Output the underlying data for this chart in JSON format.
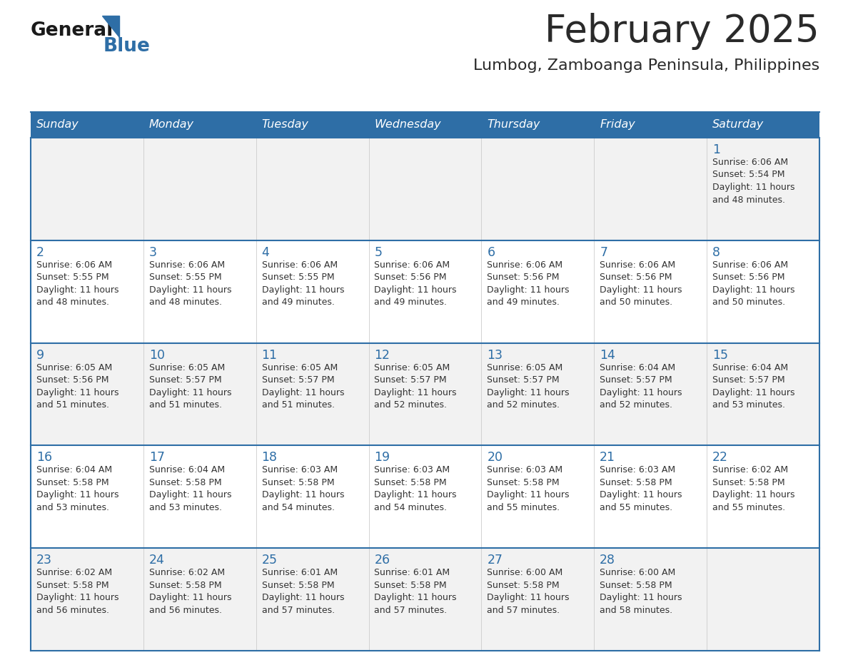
{
  "title": "February 2025",
  "subtitle": "Lumbog, Zamboanga Peninsula, Philippines",
  "header_bg": "#2E6EA6",
  "header_text": "#FFFFFF",
  "cell_bg_light": "#F2F2F2",
  "cell_bg_white": "#FFFFFF",
  "border_color": "#2E6EA6",
  "title_color": "#2a2a2a",
  "subtitle_color": "#2a2a2a",
  "day_number_color": "#2E6EA6",
  "info_text_color": "#333333",
  "days_of_week": [
    "Sunday",
    "Monday",
    "Tuesday",
    "Wednesday",
    "Thursday",
    "Friday",
    "Saturday"
  ],
  "calendar_data": [
    [
      {
        "day": 0,
        "info": ""
      },
      {
        "day": 0,
        "info": ""
      },
      {
        "day": 0,
        "info": ""
      },
      {
        "day": 0,
        "info": ""
      },
      {
        "day": 0,
        "info": ""
      },
      {
        "day": 0,
        "info": ""
      },
      {
        "day": 1,
        "info": "Sunrise: 6:06 AM\nSunset: 5:54 PM\nDaylight: 11 hours\nand 48 minutes."
      }
    ],
    [
      {
        "day": 2,
        "info": "Sunrise: 6:06 AM\nSunset: 5:55 PM\nDaylight: 11 hours\nand 48 minutes."
      },
      {
        "day": 3,
        "info": "Sunrise: 6:06 AM\nSunset: 5:55 PM\nDaylight: 11 hours\nand 48 minutes."
      },
      {
        "day": 4,
        "info": "Sunrise: 6:06 AM\nSunset: 5:55 PM\nDaylight: 11 hours\nand 49 minutes."
      },
      {
        "day": 5,
        "info": "Sunrise: 6:06 AM\nSunset: 5:56 PM\nDaylight: 11 hours\nand 49 minutes."
      },
      {
        "day": 6,
        "info": "Sunrise: 6:06 AM\nSunset: 5:56 PM\nDaylight: 11 hours\nand 49 minutes."
      },
      {
        "day": 7,
        "info": "Sunrise: 6:06 AM\nSunset: 5:56 PM\nDaylight: 11 hours\nand 50 minutes."
      },
      {
        "day": 8,
        "info": "Sunrise: 6:06 AM\nSunset: 5:56 PM\nDaylight: 11 hours\nand 50 minutes."
      }
    ],
    [
      {
        "day": 9,
        "info": "Sunrise: 6:05 AM\nSunset: 5:56 PM\nDaylight: 11 hours\nand 51 minutes."
      },
      {
        "day": 10,
        "info": "Sunrise: 6:05 AM\nSunset: 5:57 PM\nDaylight: 11 hours\nand 51 minutes."
      },
      {
        "day": 11,
        "info": "Sunrise: 6:05 AM\nSunset: 5:57 PM\nDaylight: 11 hours\nand 51 minutes."
      },
      {
        "day": 12,
        "info": "Sunrise: 6:05 AM\nSunset: 5:57 PM\nDaylight: 11 hours\nand 52 minutes."
      },
      {
        "day": 13,
        "info": "Sunrise: 6:05 AM\nSunset: 5:57 PM\nDaylight: 11 hours\nand 52 minutes."
      },
      {
        "day": 14,
        "info": "Sunrise: 6:04 AM\nSunset: 5:57 PM\nDaylight: 11 hours\nand 52 minutes."
      },
      {
        "day": 15,
        "info": "Sunrise: 6:04 AM\nSunset: 5:57 PM\nDaylight: 11 hours\nand 53 minutes."
      }
    ],
    [
      {
        "day": 16,
        "info": "Sunrise: 6:04 AM\nSunset: 5:58 PM\nDaylight: 11 hours\nand 53 minutes."
      },
      {
        "day": 17,
        "info": "Sunrise: 6:04 AM\nSunset: 5:58 PM\nDaylight: 11 hours\nand 53 minutes."
      },
      {
        "day": 18,
        "info": "Sunrise: 6:03 AM\nSunset: 5:58 PM\nDaylight: 11 hours\nand 54 minutes."
      },
      {
        "day": 19,
        "info": "Sunrise: 6:03 AM\nSunset: 5:58 PM\nDaylight: 11 hours\nand 54 minutes."
      },
      {
        "day": 20,
        "info": "Sunrise: 6:03 AM\nSunset: 5:58 PM\nDaylight: 11 hours\nand 55 minutes."
      },
      {
        "day": 21,
        "info": "Sunrise: 6:03 AM\nSunset: 5:58 PM\nDaylight: 11 hours\nand 55 minutes."
      },
      {
        "day": 22,
        "info": "Sunrise: 6:02 AM\nSunset: 5:58 PM\nDaylight: 11 hours\nand 55 minutes."
      }
    ],
    [
      {
        "day": 23,
        "info": "Sunrise: 6:02 AM\nSunset: 5:58 PM\nDaylight: 11 hours\nand 56 minutes."
      },
      {
        "day": 24,
        "info": "Sunrise: 6:02 AM\nSunset: 5:58 PM\nDaylight: 11 hours\nand 56 minutes."
      },
      {
        "day": 25,
        "info": "Sunrise: 6:01 AM\nSunset: 5:58 PM\nDaylight: 11 hours\nand 57 minutes."
      },
      {
        "day": 26,
        "info": "Sunrise: 6:01 AM\nSunset: 5:58 PM\nDaylight: 11 hours\nand 57 minutes."
      },
      {
        "day": 27,
        "info": "Sunrise: 6:00 AM\nSunset: 5:58 PM\nDaylight: 11 hours\nand 57 minutes."
      },
      {
        "day": 28,
        "info": "Sunrise: 6:00 AM\nSunset: 5:58 PM\nDaylight: 11 hours\nand 58 minutes."
      },
      {
        "day": 0,
        "info": ""
      }
    ]
  ],
  "logo_general_color": "#1a1a1a",
  "logo_blue_color": "#2E6EA6",
  "logo_triangle_color": "#2E6EA6"
}
